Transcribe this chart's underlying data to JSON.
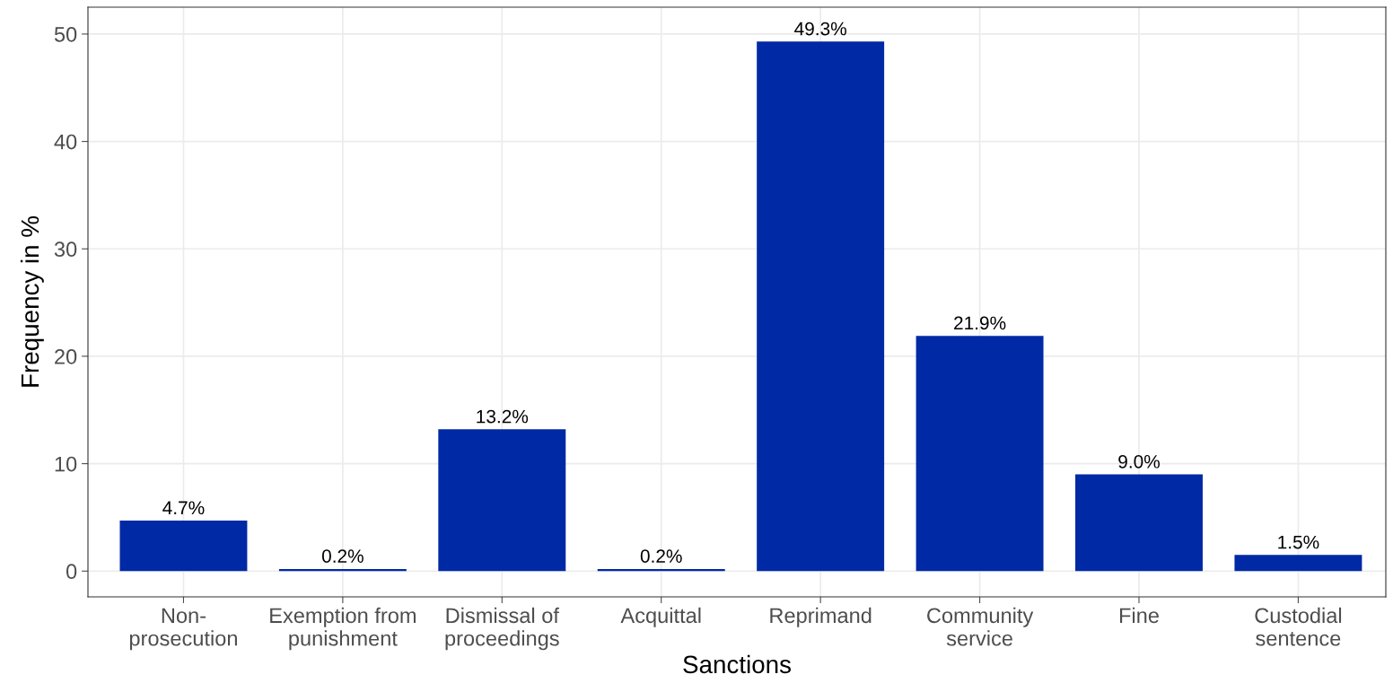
{
  "chart_data": {
    "type": "bar",
    "xlabel": "Sanctions",
    "ylabel": "Frequency in %",
    "categories": [
      "Non-\nprosecution",
      "Exemption from\npunishment",
      "Dismissal of\nproceedings",
      "Acquittal",
      "Reprimand",
      "Community\nservice",
      "Fine",
      "Custodial\nsentence"
    ],
    "values": [
      4.7,
      0.2,
      13.2,
      0.2,
      49.3,
      21.9,
      9.0,
      1.5
    ],
    "value_labels": [
      "4.7%",
      "0.2%",
      "13.2%",
      "0.2%",
      "49.3%",
      "21.9%",
      "9.0%",
      "1.5%"
    ],
    "color": "#0029a5",
    "ylim": [
      -2.4,
      52.5
    ],
    "yticks": [
      0,
      10,
      20,
      30,
      40,
      50
    ],
    "grid": true
  }
}
